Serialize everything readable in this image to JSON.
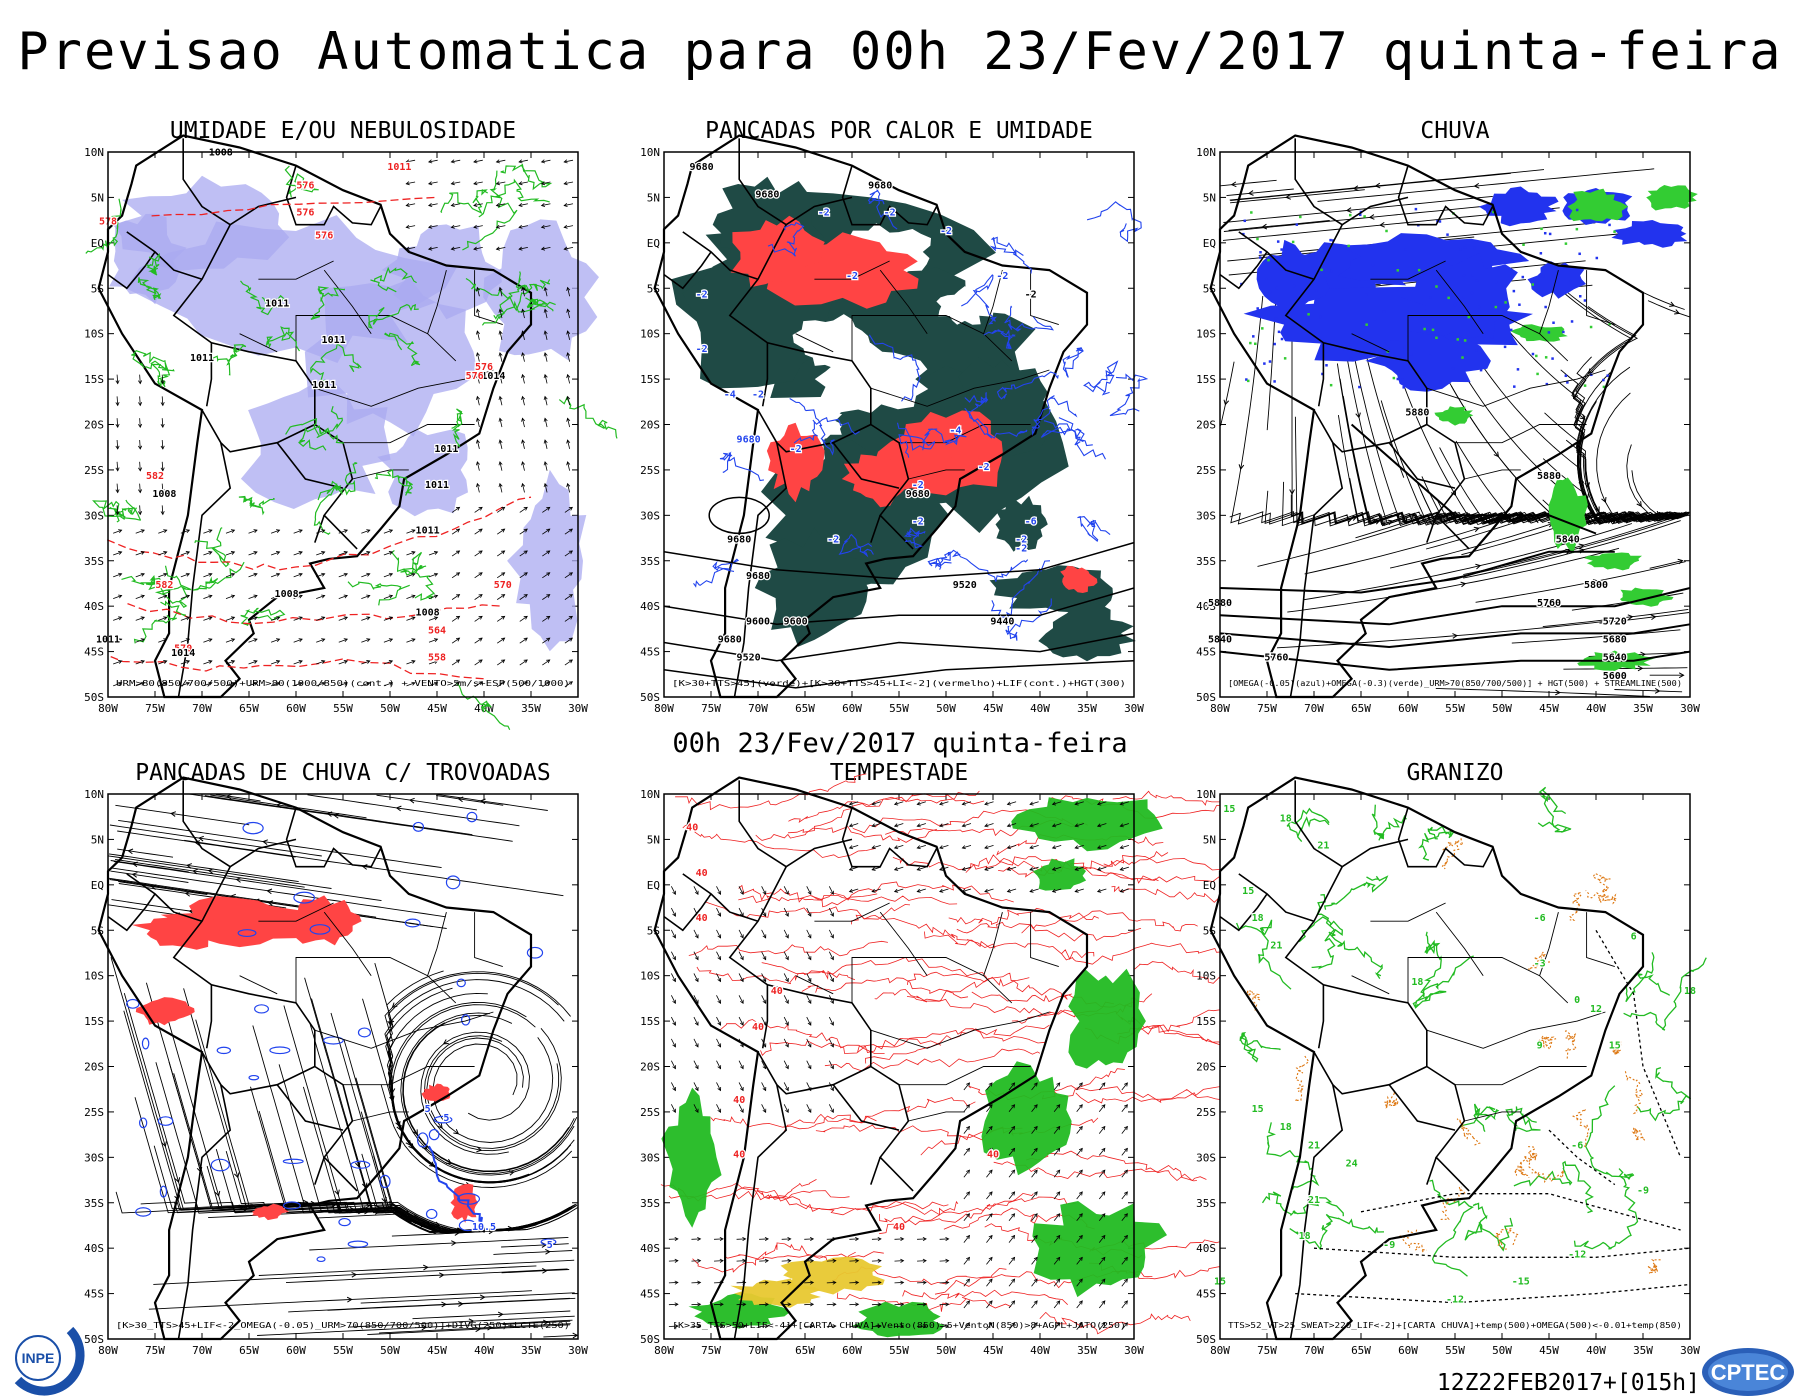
{
  "header": {
    "title": "Previsao Automatica  para 00h 23/Fev/2017 quinta-feira"
  },
  "mid_title": "00h 23/Fev/2017 quinta-feira",
  "footer": {
    "run_label": "12Z22FEB2017+[015h]"
  },
  "logos": {
    "left": "INPE",
    "right": "CPTEC"
  },
  "axes": {
    "lat_labels": [
      "10N",
      "5N",
      "EQ",
      "5S",
      "10S",
      "15S",
      "20S",
      "25S",
      "30S",
      "35S",
      "40S",
      "45S",
      "50S"
    ],
    "lon_labels": [
      "80W",
      "75W",
      "70W",
      "65W",
      "60W",
      "55W",
      "50W",
      "45W",
      "40W",
      "35W",
      "30W"
    ]
  },
  "panels": [
    {
      "title": "UMIDADE E/OU NEBULOSIDADE",
      "legend": "URM>80(850/700/500)+URM>80(1000/850)(cont.) + VENTO>5m/s+ESP(500/1000)",
      "labels": [
        "1008",
        "1011",
        "576",
        "576",
        "576",
        "578",
        "1011",
        "1011",
        "1011",
        "1011",
        "1011",
        "1014",
        "576",
        "582",
        "1008",
        "576",
        "1011",
        "1011",
        "582",
        "1008",
        "570",
        "564",
        "570",
        "1011",
        "1014",
        "558",
        "1008"
      ],
      "colors": {
        "fill": "#a9a9f0",
        "contour": "#22bb22",
        "thickness": "#ee2222"
      }
    },
    {
      "title": "PANCADAS POR CALOR E UMIDADE",
      "legend": "[K>30+TTS>45](verde)+[K>30+TTS>45+LI<-2](vermelho)+LIF(cont.)+HGT(300)",
      "labels": [
        "9680",
        "9680",
        "9680",
        "-2",
        "-2",
        "-2",
        "-2",
        "-2",
        "-2",
        "-2",
        "-4",
        "-2",
        "-2",
        "9680",
        "-2",
        "-4",
        "-2",
        "-2",
        "-2",
        "-2",
        "-2",
        "9680",
        "9680",
        "-2",
        "9680",
        "9600",
        "9520",
        "9440",
        "9680",
        "9600",
        "9520",
        "-6"
      ],
      "colors": {
        "fill_green": "#1f4a45",
        "fill_red": "#ff4444",
        "contour": "#2244ee"
      }
    },
    {
      "title": "CHUVA",
      "legend": "[OMEGA(-0.05)(azul)+OMEGA(-0.3)(verde)_URM>70(850/700/500)] + HGT(500) + STREAMLINE(500)",
      "labels": [
        "5880",
        "5880",
        "5840",
        "5760",
        "5880",
        "5840",
        "5760",
        "5720",
        "5680",
        "5640",
        "5600",
        "5800"
      ],
      "colors": {
        "fill_blue": "#2233ee",
        "fill_green": "#33cc33"
      }
    },
    {
      "title": "PANCADAS DE CHUVA C/ TROVOADAS",
      "legend": "[K>30_TTS>45+LIF<-2_OMEGA(-0.05)_URM>70(850/700/500)]+DIVG(250)+LCTE(250)",
      "labels": [
        "5",
        "5",
        "10.5",
        "5"
      ],
      "colors": {
        "fill_red": "#ff4444",
        "contour": "#2244ee"
      }
    },
    {
      "title": "TEMPESTADE",
      "legend": "[K>35_TTS>50+LIF<-4]+[CARTA CHUVA]+Vento(850)>5+VentoN(850)>8+AGPL+JATO(250)",
      "labels": [
        "40",
        "40",
        "40",
        "40",
        "40",
        "40",
        "40",
        "40",
        "40"
      ],
      "colors": {
        "fill_green": "#22bb22",
        "fill_yellow": "#e8c830",
        "contour": "#ee2222"
      }
    },
    {
      "title": "GRANIZO",
      "legend": "TTS>52_VT>25_SWEAT>220_LIF<-2]+[CARTA CHUVA]+temp(500)+OMEGA(500)<-0.01+temp(850)",
      "labels": [
        "15",
        "18",
        "21",
        "15",
        "18",
        "21",
        "18",
        "15",
        "18",
        "21",
        "24",
        "21",
        "18",
        "15",
        "-6",
        "-9",
        "-12",
        "-15",
        "-12",
        "-9",
        "-6",
        "-3",
        "0",
        "9",
        "6",
        "12",
        "15",
        "18"
      ],
      "colors": {
        "contour_green": "#22bb22",
        "contour_orange": "#dd7711"
      }
    }
  ]
}
